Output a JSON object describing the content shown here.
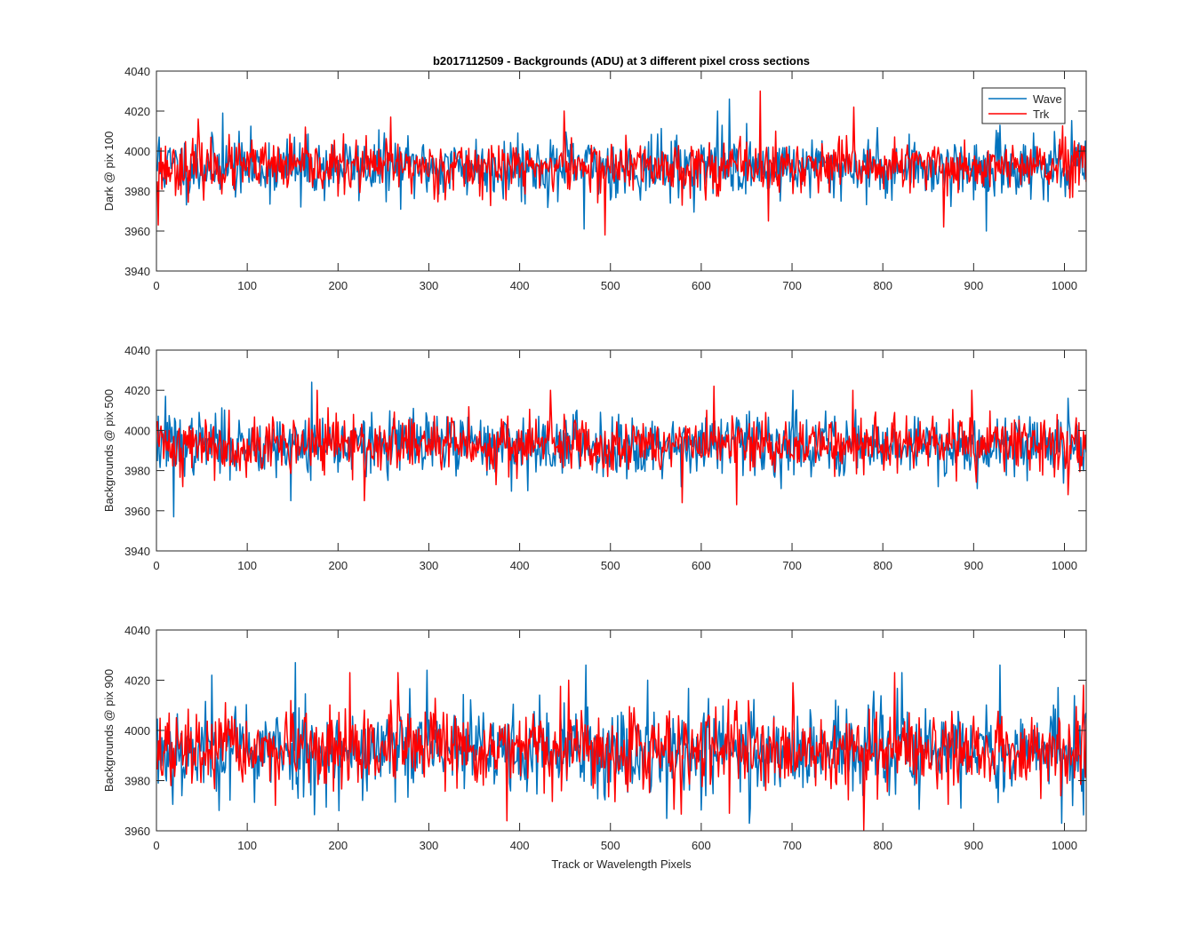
{
  "figure": {
    "title": "b2017112509 - Backgrounds (ADU) at 3 different pixel cross sections",
    "xlabel": "Track or Wavelength Pixels"
  },
  "colors": {
    "wave": "#0072BD",
    "trk": "#FF0000",
    "axis": "#262626",
    "background": "#FFFFFF"
  },
  "legend": {
    "position": "top-right",
    "entries": [
      "Wave",
      "Trk"
    ]
  },
  "chart_data": [
    {
      "type": "line",
      "ylabel": "Dark @ pix 100",
      "xlim": [
        0,
        1024
      ],
      "ylim": [
        3940,
        4040
      ],
      "xticks": [
        0,
        100,
        200,
        300,
        400,
        500,
        600,
        700,
        800,
        900,
        1000
      ],
      "xtick_labels": [
        "0",
        "100",
        "200",
        "300",
        "400",
        "500",
        "600",
        "700",
        "800",
        "900",
        "1000"
      ],
      "yticks": [
        3940,
        3960,
        3980,
        4000,
        4020,
        4040
      ],
      "ytick_labels": [
        "3940",
        "3960",
        "3980",
        "4000",
        "4020",
        "4040"
      ],
      "series": [
        {
          "name": "Wave",
          "color": "#0072BD",
          "n": 1024,
          "mean": 3992,
          "sd": 7.5,
          "seed": 11,
          "spikes": [
            [
              2,
              4007
            ],
            [
              72,
              4019
            ],
            [
              158,
              3972
            ],
            [
              397,
              4009
            ],
            [
              470,
              3961
            ],
            [
              617,
              4020
            ],
            [
              630,
              4026
            ],
            [
              913,
              3960
            ],
            [
              965,
              4009
            ],
            [
              1002,
              3983
            ]
          ]
        },
        {
          "name": "Trk",
          "color": "#FF0000",
          "n": 1024,
          "mean": 3992,
          "sd": 6.5,
          "seed": 23,
          "spikes": [
            [
              1,
              3963
            ],
            [
              45,
              4016
            ],
            [
              257,
              4017
            ],
            [
              448,
              4020
            ],
            [
              493,
              3958
            ],
            [
              664,
              4030
            ],
            [
              673,
              3965
            ],
            [
              767,
              4022
            ],
            [
              866,
              3962
            ],
            [
              1010,
              4005
            ]
          ]
        }
      ]
    },
    {
      "type": "line",
      "ylabel": "Backgrounds @ pix 500",
      "xlim": [
        0,
        1024
      ],
      "ylim": [
        3940,
        4040
      ],
      "xticks": [
        0,
        100,
        200,
        300,
        400,
        500,
        600,
        700,
        800,
        900,
        1000
      ],
      "xtick_labels": [
        "0",
        "100",
        "200",
        "300",
        "400",
        "500",
        "600",
        "700",
        "800",
        "900",
        "1000"
      ],
      "yticks": [
        3940,
        3960,
        3980,
        4000,
        4020,
        4040
      ],
      "ytick_labels": [
        "3940",
        "3960",
        "3980",
        "4000",
        "4020",
        "4040"
      ],
      "series": [
        {
          "name": "Wave",
          "color": "#0072BD",
          "n": 1024,
          "mean": 3993,
          "sd": 7.5,
          "seed": 37,
          "spikes": [
            [
              9,
              4017
            ],
            [
              18,
              3957
            ],
            [
              170,
              4024
            ],
            [
              147,
              3965
            ],
            [
              408,
              3970
            ],
            [
              540,
              3992
            ],
            [
              700,
              4020
            ],
            [
              860,
              3972
            ],
            [
              1003,
              4016
            ],
            [
              1020,
              3980
            ]
          ]
        },
        {
          "name": "Trk",
          "color": "#FF0000",
          "n": 1024,
          "mean": 3993,
          "sd": 7.0,
          "seed": 41,
          "spikes": [
            [
              28,
              3972
            ],
            [
              176,
              4020
            ],
            [
              228,
              3965
            ],
            [
              433,
              4020
            ],
            [
              578,
              3964
            ],
            [
              613,
              4022
            ],
            [
              638,
              3963
            ],
            [
              766,
              4020
            ],
            [
              897,
              4020
            ],
            [
              1003,
              3968
            ]
          ]
        }
      ]
    },
    {
      "type": "line",
      "ylabel": "Backgrounds @ pix 900",
      "xlim": [
        0,
        1024
      ],
      "ylim": [
        3960,
        4040
      ],
      "xticks": [
        0,
        100,
        200,
        300,
        400,
        500,
        600,
        700,
        800,
        900,
        1000
      ],
      "xtick_labels": [
        "0",
        "100",
        "200",
        "300",
        "400",
        "500",
        "600",
        "700",
        "800",
        "900",
        "1000"
      ],
      "yticks": [
        3960,
        3980,
        4000,
        4020,
        4040
      ],
      "ytick_labels": [
        "3960",
        "3980",
        "4000",
        "4020",
        "4040"
      ],
      "series": [
        {
          "name": "Wave",
          "color": "#0072BD",
          "n": 1024,
          "mean": 3992,
          "sd": 9.0,
          "seed": 53,
          "spikes": [
            [
              60,
              4022
            ],
            [
              152,
              4027
            ],
            [
              297,
              4024
            ],
            [
              472,
              4026
            ],
            [
              652,
              3963
            ],
            [
              820,
              4023
            ],
            [
              928,
              4026
            ],
            [
              996,
              3963
            ],
            [
              200,
              3968
            ],
            [
              540,
              4020
            ]
          ]
        },
        {
          "name": "Trk",
          "color": "#FF0000",
          "n": 1024,
          "mean": 3992,
          "sd": 7.5,
          "seed": 67,
          "spikes": [
            [
              212,
              4023
            ],
            [
              265,
              4023
            ],
            [
              385,
              3964
            ],
            [
              453,
              4020
            ],
            [
              778,
              3960
            ],
            [
              812,
              4023
            ],
            [
              630,
              3967
            ],
            [
              700,
              4019
            ],
            [
              1020,
              4018
            ],
            [
              15,
              3978
            ]
          ]
        }
      ]
    }
  ]
}
